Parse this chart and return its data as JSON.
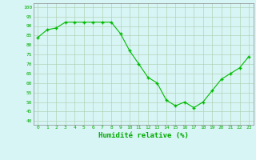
{
  "x": [
    0,
    1,
    2,
    3,
    4,
    5,
    6,
    7,
    8,
    9,
    10,
    11,
    12,
    13,
    14,
    15,
    16,
    17,
    18,
    19,
    20,
    21,
    22,
    23
  ],
  "y": [
    84,
    88,
    89,
    92,
    92,
    92,
    92,
    92,
    92,
    86,
    77,
    70,
    63,
    60,
    51,
    48,
    50,
    47,
    50,
    56,
    62,
    65,
    68,
    74
  ],
  "line_color": "#00bb00",
  "marker": "+",
  "bg_color": "#d8f5f5",
  "grid_color": "#aaccaa",
  "xlabel": "Humidité relative (%)",
  "xlabel_color": "#00aa00",
  "yticks": [
    40,
    45,
    50,
    55,
    60,
    65,
    70,
    75,
    80,
    85,
    90,
    95,
    100
  ],
  "ylim": [
    38,
    102
  ],
  "xlim": [
    -0.5,
    23.5
  ],
  "tick_color": "#00aa00",
  "spine_color": "#888888"
}
